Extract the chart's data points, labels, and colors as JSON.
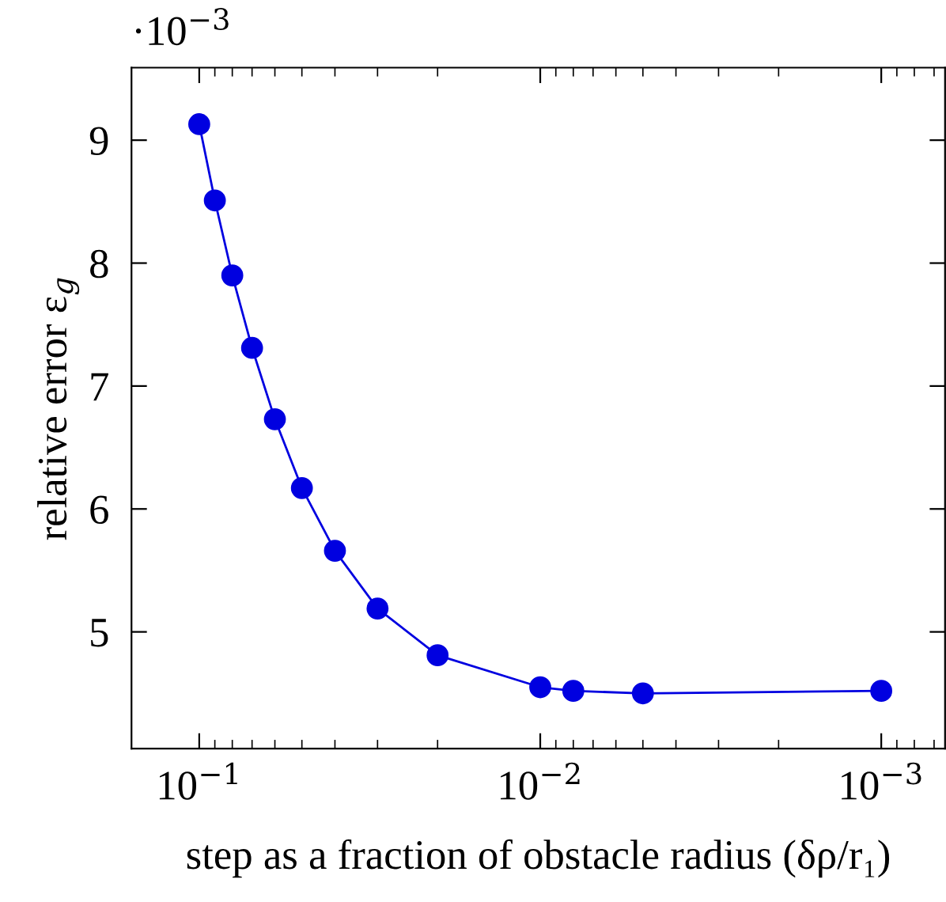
{
  "chart_data": {
    "type": "line",
    "xlabel": "step as a fraction of obstacle radius (δρ/r₁)",
    "ylabel": "relative error ε$_{g}$",
    "annotations": [
      "·10$^{−3}$"
    ],
    "x": [
      0.1,
      0.09,
      0.08,
      0.07,
      0.06,
      0.05,
      0.04,
      0.03,
      0.02,
      0.01,
      0.008,
      0.005,
      0.001
    ],
    "series": [
      {
        "color": "#0000e0",
        "values": [
          9.13,
          8.51,
          7.9,
          7.31,
          6.73,
          6.17,
          5.66,
          5.19,
          4.81,
          4.55,
          4.52,
          4.5,
          4.52
        ]
      }
    ],
    "log": "x",
    "xlim": [
      0.158,
      0.00065
    ],
    "xticks": [
      {
        "value": 0.1,
        "label": "10$^{−1}$"
      },
      {
        "value": 0.01,
        "label": "10$^{−2}$"
      },
      {
        "value": 0.001,
        "label": "10$^{−3}$"
      }
    ],
    "ylim": [
      4.05,
      9.59
    ],
    "yticks": [
      5,
      6,
      7,
      8,
      9
    ],
    "grid": false,
    "marker": "circle",
    "line_style": "solid"
  }
}
